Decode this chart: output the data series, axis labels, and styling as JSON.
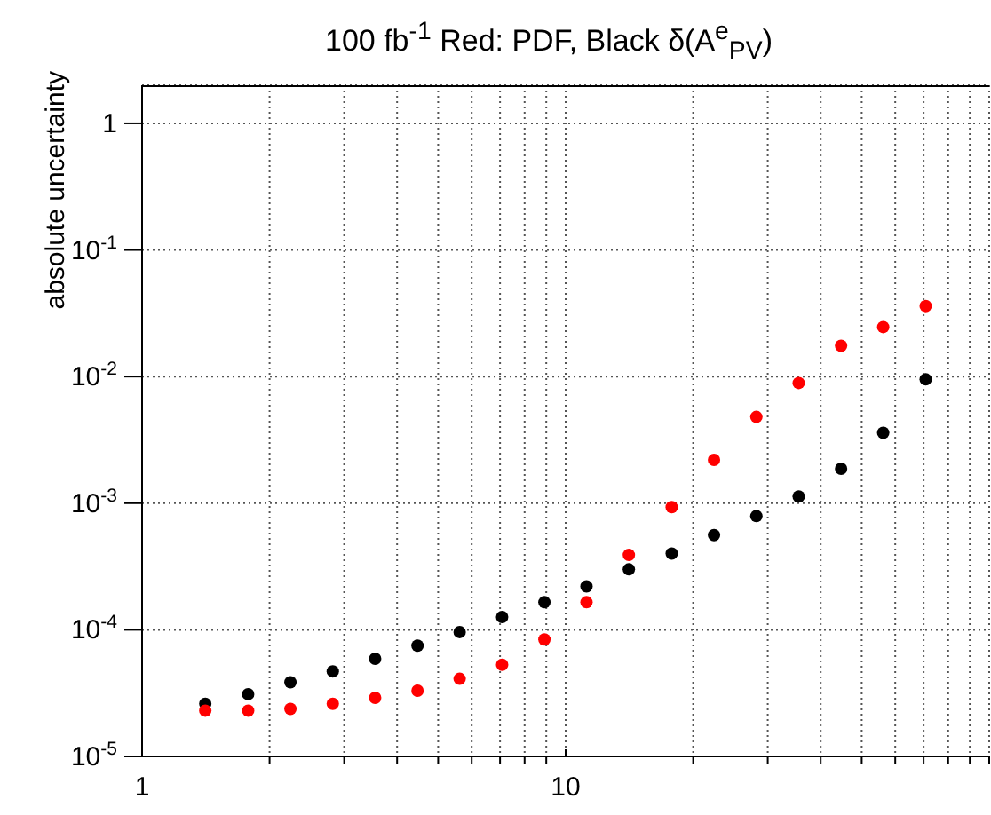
{
  "chart_data": {
    "type": "scatter",
    "title": "100 fb$^{-1}$ Red: PDF, Black δ(A$^{e}$$_{PV}$)",
    "ylabel": "absolute uncertainty",
    "x": [
      1.41,
      1.78,
      2.24,
      2.82,
      3.55,
      4.47,
      5.62,
      7.08,
      8.91,
      11.2,
      14.1,
      17.8,
      22.4,
      28.2,
      35.5,
      44.7,
      56.2,
      70.8
    ],
    "series": [
      {
        "color": "#000000",
        "values": [
          2.6e-05,
          3.1e-05,
          3.85e-05,
          4.7e-05,
          5.9e-05,
          7.5e-05,
          9.6e-05,
          0.000126,
          0.000165,
          0.00022,
          0.0003,
          0.0004,
          0.00056,
          0.00079,
          0.00113,
          0.00187,
          0.0036,
          0.0095
        ]
      },
      {
        "color": "#ff0000",
        "values": [
          2.3e-05,
          2.3e-05,
          2.37e-05,
          2.6e-05,
          2.9e-05,
          3.3e-05,
          4.1e-05,
          5.3e-05,
          8.4e-05,
          0.000165,
          0.00039,
          0.00093,
          0.0022,
          0.0048,
          0.0089,
          0.0175,
          0.0246,
          0.036
        ]
      }
    ],
    "log": "xy",
    "xlim": [
      1,
      100
    ],
    "xticks": [
      1,
      {
        "value": 2,
        "label": null
      },
      {
        "value": 3,
        "label": null
      },
      {
        "value": 4,
        "label": null
      },
      {
        "value": 5,
        "label": null
      },
      {
        "value": 6,
        "label": null
      },
      {
        "value": 7,
        "label": null
      },
      {
        "value": 8,
        "label": null
      },
      {
        "value": 9,
        "label": null
      },
      10,
      {
        "value": 20,
        "label": null
      },
      {
        "value": 30,
        "label": null
      },
      {
        "value": 40,
        "label": null
      },
      {
        "value": 50,
        "label": null
      },
      {
        "value": 60,
        "label": null
      },
      {
        "value": 70,
        "label": null
      },
      {
        "value": 80,
        "label": null
      },
      {
        "value": 90,
        "label": null
      },
      {
        "value": 100,
        "label": null
      }
    ],
    "ylim": [
      1e-05,
      2
    ],
    "yticks": [
      {
        "value": 1e-05,
        "label": "10$^{-5}$"
      },
      {
        "value": 0.0001,
        "label": "10$^{-4}$"
      },
      {
        "value": 0.001,
        "label": "10$^{-3}$"
      },
      {
        "value": 0.01,
        "label": "10$^{-2}$"
      },
      {
        "value": 0.1,
        "label": "10$^{-1}$"
      },
      1
    ],
    "grid": true,
    "marker": "circle"
  }
}
